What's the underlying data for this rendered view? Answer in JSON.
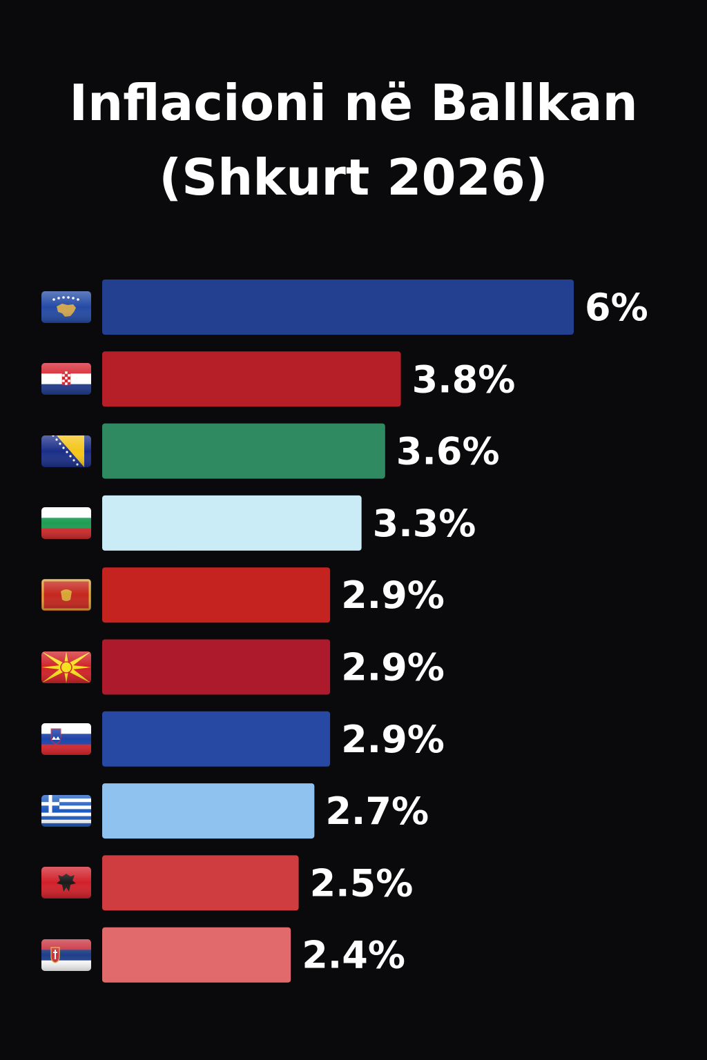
{
  "title_lines": [
    "Inflacioni në Ballkan",
    "(Shkurt 2026)"
  ],
  "chart_data": {
    "type": "bar",
    "orientation": "horizontal",
    "title": "Inflacioni në Ballkan (Shkurt 2026)",
    "categories": [
      "flag-kosovo",
      "flag-croatia",
      "flag-bosnia-and-herzegovina",
      "flag-bulgaria",
      "flag-montenegro",
      "flag-north-macedonia",
      "flag-slovenia",
      "flag-greece",
      "flag-albania",
      "flag-serbia"
    ],
    "values": [
      6,
      3.8,
      3.6,
      3.3,
      2.9,
      2.9,
      2.9,
      2.7,
      2.5,
      2.4
    ],
    "labels": [
      "6%",
      "3.8%",
      "3.6%",
      "3.3%",
      "2.9%",
      "2.9%",
      "2.9%",
      "2.7%",
      "2.5%",
      "2.4%"
    ],
    "colors": [
      "#22408f",
      "#b71f28",
      "#2f8a61",
      "#c9ecf7",
      "#c4231f",
      "#ad1a2b",
      "#2849a3",
      "#8fc2ef",
      "#d03d40",
      "#e06a6c"
    ],
    "xlim": [
      0,
      6
    ],
    "grid": false,
    "legend": "none"
  }
}
